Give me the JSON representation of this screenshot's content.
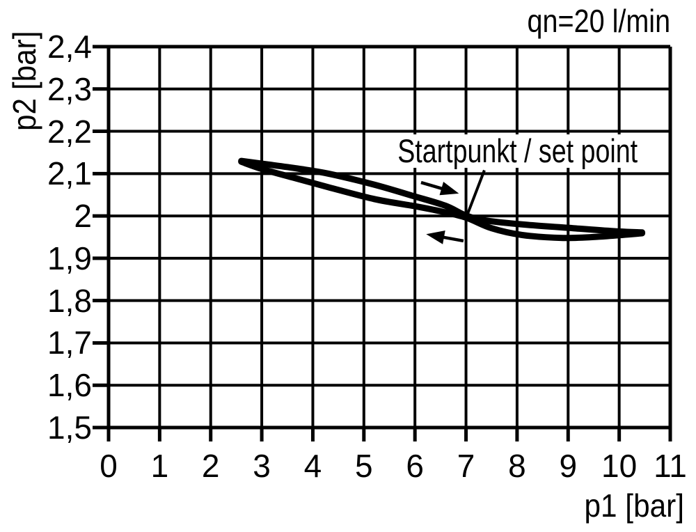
{
  "colors": {
    "ink": "#000000",
    "background": "#ffffff"
  },
  "chart_data": {
    "type": "line",
    "title": "qn=20 l/min",
    "xlabel": "p1 [bar]",
    "ylabel": "p2 [bar]",
    "xlim": [
      0,
      11
    ],
    "ylim": [
      1.5,
      2.4
    ],
    "grid": true,
    "legend": "none",
    "x_ticks": [
      0,
      1,
      2,
      3,
      4,
      5,
      6,
      7,
      8,
      9,
      10,
      11
    ],
    "x_tick_labels": [
      "0",
      "1",
      "2",
      "3",
      "4",
      "5",
      "6",
      "7",
      "8",
      "9",
      "10",
      "11"
    ],
    "y_ticks": [
      2.4,
      2.3,
      2.2,
      2.1,
      2.0,
      1.9,
      1.8,
      1.7,
      1.6,
      1.5
    ],
    "y_tick_labels": [
      "2,4",
      "2,3",
      "2,2",
      "2,1",
      "2",
      "1,9",
      "1,8",
      "1,7",
      "1,6",
      "1,5"
    ],
    "series": [
      {
        "name": "hysteresis-upper-branch",
        "points": [
          [
            2.6,
            2.13
          ],
          [
            3.1,
            2.122
          ],
          [
            3.7,
            2.112
          ],
          [
            4.3,
            2.1
          ],
          [
            5.2,
            2.074
          ],
          [
            6.0,
            2.046
          ],
          [
            6.6,
            2.024
          ],
          [
            7.0,
            2.001
          ],
          [
            7.4,
            1.989
          ],
          [
            8.2,
            1.979
          ],
          [
            9.1,
            1.971
          ],
          [
            9.9,
            1.964
          ],
          [
            10.45,
            1.961
          ]
        ]
      },
      {
        "name": "hysteresis-lower-branch",
        "points": [
          [
            2.6,
            2.128
          ],
          [
            3.0,
            2.111
          ],
          [
            3.6,
            2.091
          ],
          [
            4.3,
            2.068
          ],
          [
            5.2,
            2.04
          ],
          [
            6.0,
            2.023
          ],
          [
            6.5,
            2.011
          ],
          [
            7.0,
            1.996
          ],
          [
            7.5,
            1.971
          ],
          [
            8.1,
            1.955
          ],
          [
            8.9,
            1.948
          ],
          [
            9.6,
            1.951
          ],
          [
            10.45,
            1.959
          ]
        ]
      }
    ],
    "set_point": {
      "p1": 7.0,
      "p2": 2.0
    },
    "annotation": {
      "text": "Startpunkt / set point",
      "line_from": [
        7.36,
        2.108
      ],
      "line_to": [
        7.01,
        1.998
      ]
    },
    "direction_arrows": [
      {
        "name": "increasing-p1-arrow",
        "direction": "right",
        "from": [
          6.12,
          2.079
        ],
        "to": [
          6.86,
          2.053
        ]
      },
      {
        "name": "decreasing-p1-arrow",
        "direction": "left",
        "from": [
          6.95,
          1.941
        ],
        "to": [
          6.22,
          1.957
        ]
      }
    ]
  }
}
